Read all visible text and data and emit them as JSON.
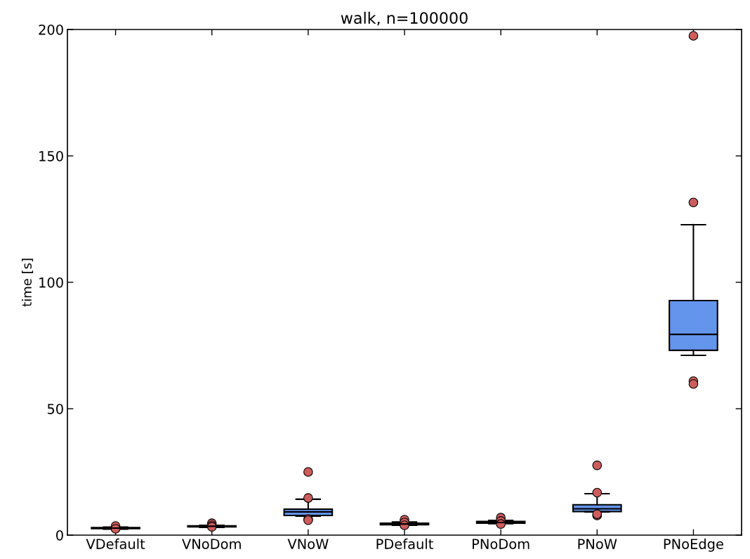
{
  "chart_data": {
    "type": "box",
    "title": "walk, n=100000",
    "ylabel": "time [s]",
    "categories": [
      "VDefault",
      "VNoDom",
      "VNoW",
      "PDefault",
      "PNoDom",
      "PNoW",
      "PNoEdge"
    ],
    "color": "#6495ed",
    "ylim": [
      0,
      200
    ],
    "yticks": [
      0,
      50,
      100,
      150,
      200
    ],
    "grid": false,
    "legend": false,
    "boxes": [
      {
        "low": 2.4,
        "q1": 2.6,
        "median": 2.8,
        "q3": 3.0,
        "high": 3.2,
        "outliers": [
          3.6,
          2.5
        ]
      },
      {
        "low": 3.1,
        "q1": 3.3,
        "median": 3.5,
        "q3": 3.7,
        "high": 3.9,
        "outliers": [
          4.7,
          3.9,
          3.3
        ]
      },
      {
        "low": 7.5,
        "q1": 7.8,
        "median": 9.2,
        "q3": 10.3,
        "high": 14.2,
        "outliers": [
          25,
          14.7,
          6.4,
          5.9
        ]
      },
      {
        "low": 3.9,
        "q1": 4.1,
        "median": 4.4,
        "q3": 4.7,
        "high": 5.2,
        "outliers": [
          6.1,
          5.0,
          3.9
        ]
      },
      {
        "low": 4.5,
        "q1": 4.7,
        "median": 5.0,
        "q3": 5.4,
        "high": 5.8,
        "outliers": [
          6.9,
          5.6,
          4.4
        ]
      },
      {
        "low": 9.2,
        "q1": 9.3,
        "median": 10.4,
        "q3": 12.0,
        "high": 16.4,
        "outliers": [
          27.6,
          16.8,
          7.8,
          8.3
        ]
      },
      {
        "low": 71.1,
        "q1": 73.1,
        "median": 79.4,
        "q3": 92.8,
        "high": 122.8,
        "outliers": [
          197.5,
          131.6,
          60.9,
          59.8
        ]
      }
    ]
  }
}
